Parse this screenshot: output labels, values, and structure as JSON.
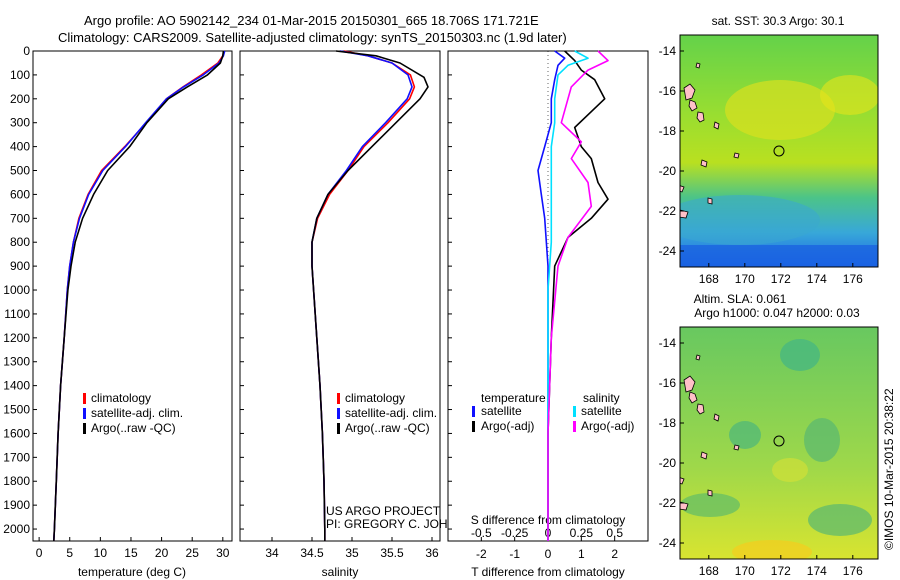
{
  "header": {
    "line1": "Argo profile: AO 5902142_234 01-Mar-2015 20150301_665 18.706S 171.721E",
    "line2": "Climatology: CARS2009. Satellite-adjusted climatology: synTS_20150303.nc (1.9d later)"
  },
  "colors": {
    "climatology": "#ff0000",
    "satellite": "#1010ff",
    "argo": "#000000",
    "salinity_sat": "#00e0ff",
    "salinity_argo": "#ff00ff"
  },
  "chart_data": [
    {
      "type": "line",
      "id": "temperature",
      "xlabel": "temperature (deg C)",
      "xlim": [
        -1,
        31.5
      ],
      "xticks": [
        0,
        5,
        10,
        15,
        20,
        25,
        30
      ],
      "ylim": [
        0,
        2050
      ],
      "yticks": [
        0,
        100,
        200,
        300,
        400,
        500,
        600,
        700,
        800,
        900,
        1000,
        1100,
        1200,
        1300,
        1400,
        1500,
        1600,
        1700,
        1800,
        1900,
        2000
      ],
      "legend": [
        "climatology",
        "satellite-adj. clim.",
        "Argo(..raw -QC)"
      ],
      "series": [
        {
          "name": "climatology",
          "color": "#ff0000",
          "points": [
            [
              30.2,
              0
            ],
            [
              30.0,
              20
            ],
            [
              29.2,
              50
            ],
            [
              26.5,
              100
            ],
            [
              23.5,
              150
            ],
            [
              20.8,
              200
            ],
            [
              17.5,
              300
            ],
            [
              14.0,
              400
            ],
            [
              10.2,
              500
            ],
            [
              8.0,
              600
            ],
            [
              6.5,
              700
            ],
            [
              5.6,
              800
            ],
            [
              5.0,
              900
            ],
            [
              4.6,
              1000
            ],
            [
              4.1,
              1200
            ],
            [
              3.5,
              1400
            ],
            [
              3.1,
              1600
            ],
            [
              2.8,
              1800
            ],
            [
              2.5,
              2000
            ],
            [
              2.4,
              2050
            ]
          ]
        },
        {
          "name": "satellite",
          "color": "#1010ff",
          "points": [
            [
              30.3,
              0
            ],
            [
              30.1,
              20
            ],
            [
              29.4,
              50
            ],
            [
              26.8,
              100
            ],
            [
              23.6,
              150
            ],
            [
              20.8,
              200
            ],
            [
              17.4,
              300
            ],
            [
              14.1,
              400
            ],
            [
              10.4,
              500
            ],
            [
              8.1,
              600
            ],
            [
              6.6,
              700
            ],
            [
              5.6,
              800
            ],
            [
              5.0,
              900
            ],
            [
              4.6,
              1000
            ],
            [
              4.1,
              1200
            ],
            [
              3.5,
              1400
            ],
            [
              3.1,
              1600
            ],
            [
              2.8,
              1800
            ],
            [
              2.5,
              2000
            ],
            [
              2.4,
              2050
            ]
          ]
        },
        {
          "name": "argo",
          "color": "#000000",
          "points": [
            [
              30.1,
              0
            ],
            [
              30.0,
              20
            ],
            [
              29.6,
              50
            ],
            [
              27.5,
              100
            ],
            [
              24.2,
              150
            ],
            [
              21.1,
              200
            ],
            [
              17.6,
              300
            ],
            [
              14.8,
              400
            ],
            [
              11.2,
              500
            ],
            [
              8.9,
              600
            ],
            [
              7.1,
              700
            ],
            [
              5.9,
              800
            ],
            [
              5.2,
              900
            ],
            [
              4.7,
              1000
            ],
            [
              4.1,
              1200
            ],
            [
              3.5,
              1400
            ],
            [
              3.1,
              1600
            ],
            [
              2.8,
              1800
            ],
            [
              2.5,
              2000
            ],
            [
              2.4,
              2050
            ]
          ]
        }
      ]
    },
    {
      "type": "line",
      "id": "salinity",
      "xlabel": "salinity",
      "xlim": [
        33.6,
        36.1
      ],
      "xticks": [
        34,
        34.5,
        35,
        35.5,
        36
      ],
      "ylim": [
        0,
        2050
      ],
      "legend": [
        "climatology",
        "satellite-adj. clim.",
        "Argo(..raw -QC)"
      ],
      "annotation": [
        "US ARGO PROJECT",
        "PI: GREGORY C. JOHNSON"
      ],
      "series": [
        {
          "name": "climatology",
          "color": "#ff0000",
          "points": [
            [
              34.9,
              0
            ],
            [
              35.2,
              20
            ],
            [
              35.5,
              50
            ],
            [
              35.73,
              100
            ],
            [
              35.78,
              150
            ],
            [
              35.72,
              200
            ],
            [
              35.45,
              300
            ],
            [
              35.15,
              400
            ],
            [
              34.95,
              500
            ],
            [
              34.72,
              600
            ],
            [
              34.57,
              700
            ],
            [
              34.5,
              800
            ],
            [
              34.5,
              900
            ],
            [
              34.52,
              1000
            ],
            [
              34.56,
              1200
            ],
            [
              34.6,
              1400
            ],
            [
              34.63,
              1600
            ],
            [
              34.65,
              1800
            ],
            [
              34.66,
              2000
            ],
            [
              34.66,
              2050
            ]
          ]
        },
        {
          "name": "satellite",
          "color": "#1010ff",
          "points": [
            [
              34.85,
              0
            ],
            [
              35.2,
              20
            ],
            [
              35.5,
              50
            ],
            [
              35.7,
              100
            ],
            [
              35.75,
              150
            ],
            [
              35.69,
              200
            ],
            [
              35.42,
              300
            ],
            [
              35.13,
              400
            ],
            [
              34.93,
              500
            ],
            [
              34.7,
              600
            ],
            [
              34.56,
              700
            ],
            [
              34.5,
              800
            ],
            [
              34.5,
              900
            ],
            [
              34.52,
              1000
            ],
            [
              34.56,
              1200
            ],
            [
              34.6,
              1400
            ],
            [
              34.63,
              1600
            ],
            [
              34.65,
              1800
            ],
            [
              34.66,
              2000
            ],
            [
              34.66,
              2050
            ]
          ]
        },
        {
          "name": "argo",
          "color": "#000000",
          "points": [
            [
              34.8,
              0
            ],
            [
              35.3,
              20
            ],
            [
              35.6,
              50
            ],
            [
              35.9,
              110
            ],
            [
              35.95,
              150
            ],
            [
              35.85,
              200
            ],
            [
              35.55,
              300
            ],
            [
              35.25,
              400
            ],
            [
              34.95,
              500
            ],
            [
              34.7,
              600
            ],
            [
              34.56,
              700
            ],
            [
              34.5,
              800
            ],
            [
              34.5,
              900
            ],
            [
              34.52,
              1000
            ],
            [
              34.56,
              1200
            ],
            [
              34.6,
              1400
            ],
            [
              34.63,
              1600
            ],
            [
              34.65,
              1800
            ],
            [
              34.66,
              2000
            ],
            [
              34.66,
              2050
            ]
          ]
        }
      ]
    },
    {
      "type": "line",
      "id": "difference",
      "xlabel": "T difference from climatology",
      "xlabel_top": "S difference from climatology",
      "xlim": [
        -3,
        3
      ],
      "xticks": [
        -2,
        -1,
        0,
        1,
        2
      ],
      "xticks_s_labels": [
        "-0.5",
        "-0.25",
        "0",
        "0.25",
        "0.5"
      ],
      "ylim": [
        0,
        2050
      ],
      "legend_t": {
        "title": "temperature",
        "items": [
          "satellite",
          "Argo(-adj)"
        ]
      },
      "legend_s": {
        "title": "salinity",
        "items": [
          "satellite",
          "Argo(-adj)"
        ]
      },
      "series": [
        {
          "name": "T satellite",
          "color": "#1010ff",
          "points": [
            [
              0.2,
              0
            ],
            [
              0.5,
              30
            ],
            [
              0.3,
              60
            ],
            [
              0.2,
              120
            ],
            [
              0.1,
              200
            ],
            [
              0.1,
              300
            ],
            [
              -0.1,
              400
            ],
            [
              -0.3,
              500
            ],
            [
              -0.2,
              600
            ],
            [
              -0.1,
              700
            ],
            [
              0,
              900
            ],
            [
              0,
              1200
            ],
            [
              0,
              1600
            ],
            [
              0,
              2050
            ]
          ]
        },
        {
          "name": "T argo",
          "color": "#000000",
          "points": [
            [
              0.5,
              0
            ],
            [
              0.8,
              40
            ],
            [
              1.0,
              80
            ],
            [
              1.4,
              120
            ],
            [
              1.7,
              200
            ],
            [
              0.8,
              320
            ],
            [
              1.0,
              400
            ],
            [
              1.3,
              450
            ],
            [
              1.5,
              550
            ],
            [
              1.8,
              620
            ],
            [
              1.3,
              700
            ],
            [
              0.6,
              780
            ],
            [
              0.2,
              900
            ],
            [
              0.1,
              1200
            ],
            [
              0,
              1600
            ],
            [
              0,
              2050
            ]
          ]
        },
        {
          "name": "S satellite",
          "color": "#00e0ff",
          "points": [
            [
              0.8,
              0
            ],
            [
              1.2,
              30
            ],
            [
              0.6,
              60
            ],
            [
              0.3,
              100
            ],
            [
              0.2,
              200
            ],
            [
              0.2,
              300
            ],
            [
              0.1,
              400
            ],
            [
              0.1,
              600
            ],
            [
              0.1,
              800
            ],
            [
              0,
              1000
            ],
            [
              0,
              1400
            ],
            [
              0,
              2050
            ]
          ]
        },
        {
          "name": "S argo",
          "color": "#ff00ff",
          "points": [
            [
              1.5,
              0
            ],
            [
              1.8,
              40
            ],
            [
              1.2,
              80
            ],
            [
              0.7,
              150
            ],
            [
              0.4,
              300
            ],
            [
              1.0,
              380
            ],
            [
              0.7,
              450
            ],
            [
              1.2,
              550
            ],
            [
              1.3,
              650
            ],
            [
              0.6,
              780
            ],
            [
              0.3,
              900
            ],
            [
              0.1,
              1200
            ],
            [
              0,
              1600
            ],
            [
              0,
              2050
            ]
          ]
        }
      ]
    },
    {
      "type": "heatmap",
      "id": "sst-map",
      "title": "sat. SST: 30.3 Argo: 30.1",
      "xticks": [
        168,
        170,
        172,
        174,
        176
      ],
      "yticks": [
        -14,
        -16,
        -18,
        -20,
        -22,
        -24
      ],
      "xlim": [
        166.4,
        177.4
      ],
      "ylim": [
        -24.8,
        -13.2
      ],
      "argo_position": [
        171.72,
        -18.71
      ]
    },
    {
      "type": "heatmap",
      "id": "sla-map",
      "title_line1": "Altim. SLA: 0.061",
      "title_line2": "Argo h1000: 0.047 h2000: 0.03",
      "xticks": [
        168,
        170,
        172,
        174,
        176
      ],
      "yticks": [
        -14,
        -16,
        -18,
        -20,
        -22,
        -24
      ],
      "xlim": [
        166.4,
        177.4
      ],
      "ylim": [
        -24.8,
        -13.2
      ],
      "argo_position": [
        171.72,
        -18.71
      ]
    }
  ],
  "credit": "©IMOS 10-Mar-2015 20:38:22"
}
